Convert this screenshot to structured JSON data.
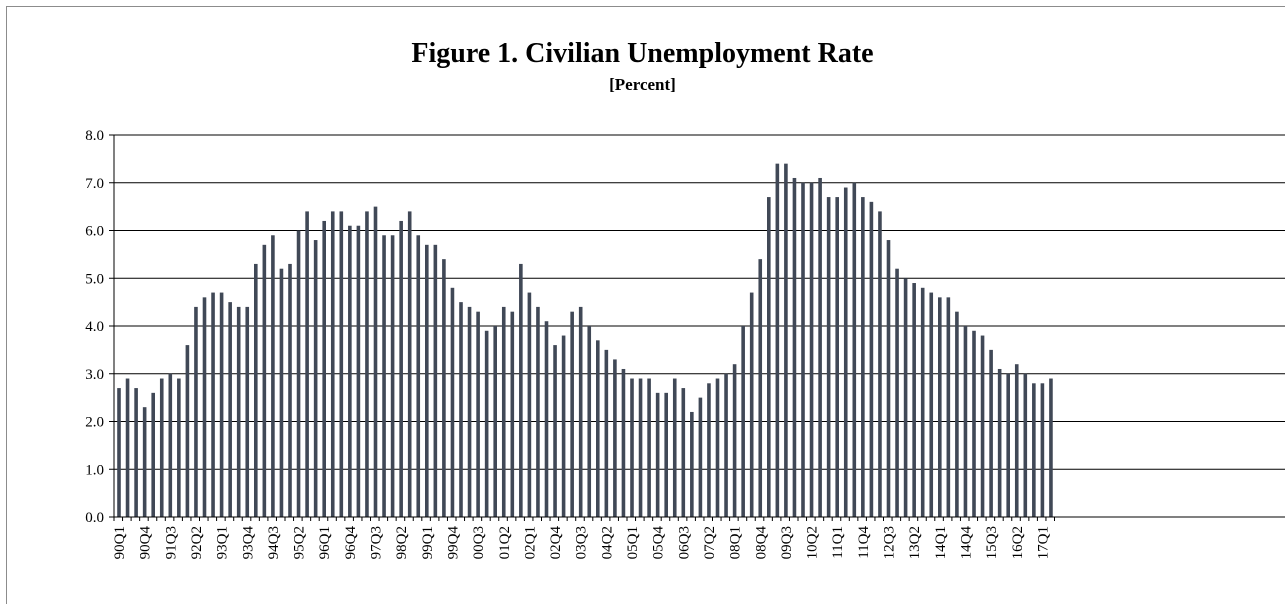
{
  "chart_data": {
    "type": "bar",
    "title": "Figure 1.  Civilian Unemployment Rate",
    "subtitle": "[Percent]",
    "ylim": [
      0,
      8
    ],
    "yticks": [
      "0.0",
      "1.0",
      "2.0",
      "3.0",
      "4.0",
      "5.0",
      "6.0",
      "7.0",
      "8.0"
    ],
    "grid": true,
    "bar_color": "#404856",
    "x_tick_labels": [
      "90Q1",
      "90Q4",
      "91Q3",
      "92Q2",
      "93Q1",
      "93Q4",
      "94Q3",
      "95Q2",
      "96Q1",
      "96Q4",
      "97Q3",
      "98Q2",
      "99Q1",
      "99Q4",
      "00Q3",
      "01Q2",
      "02Q1",
      "02Q4",
      "03Q3",
      "04Q2",
      "05Q1",
      "05Q4",
      "06Q3",
      "07Q2",
      "08Q1",
      "08Q4",
      "09Q3",
      "10Q2",
      "11Q1",
      "11Q4",
      "12Q3",
      "13Q2",
      "14Q1",
      "14Q4",
      "15Q3",
      "16Q2",
      "17Q1"
    ],
    "values": [
      2.7,
      2.9,
      2.7,
      2.3,
      2.6,
      2.9,
      3.0,
      2.9,
      3.6,
      4.4,
      4.6,
      4.7,
      4.7,
      4.5,
      4.4,
      4.4,
      5.3,
      5.7,
      5.9,
      5.2,
      5.3,
      6.0,
      6.4,
      5.8,
      6.2,
      6.4,
      6.4,
      6.1,
      6.1,
      6.4,
      6.5,
      5.9,
      5.9,
      6.2,
      6.4,
      5.9,
      5.7,
      5.7,
      5.4,
      4.8,
      4.5,
      4.4,
      4.3,
      3.9,
      4.0,
      4.4,
      4.3,
      5.3,
      4.7,
      4.4,
      4.1,
      3.6,
      3.8,
      4.3,
      4.4,
      4.0,
      3.7,
      3.5,
      3.3,
      3.1,
      2.9,
      2.9,
      2.9,
      2.6,
      2.6,
      2.9,
      2.7,
      2.2,
      2.5,
      2.8,
      2.9,
      3.0,
      3.2,
      4.0,
      4.7,
      5.4,
      6.7,
      7.4,
      7.4,
      7.1,
      7.0,
      7.0,
      7.1,
      6.7,
      6.7,
      6.9,
      7.0,
      6.7,
      6.6,
      6.4,
      5.8,
      5.2,
      5.0,
      4.9,
      4.8,
      4.7,
      4.6,
      4.6,
      4.3,
      4.0,
      3.9,
      3.8,
      3.5,
      3.1,
      3.0,
      3.2,
      3.0,
      2.8,
      2.8,
      2.9
    ]
  }
}
